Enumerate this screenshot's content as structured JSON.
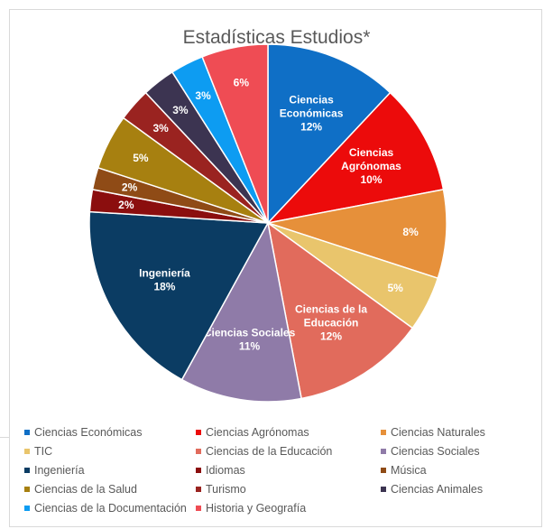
{
  "chart_data": {
    "type": "pie",
    "title": "Estadísticas  Estudios*",
    "slices": [
      {
        "name": "Ciencias Económicas",
        "value": 12,
        "label": [
          "Ciencias",
          "Económicas",
          "12%"
        ],
        "color": "#0f6fc6"
      },
      {
        "name": "Ciencias Agrónomas",
        "value": 10,
        "label": [
          "Ciencias",
          "Agrónomas",
          "10%"
        ],
        "color": "#ec0b0b"
      },
      {
        "name": "Ciencias Naturales",
        "value": 8,
        "label": [
          "8%"
        ],
        "color": "#e6903a"
      },
      {
        "name": "TIC",
        "value": 5,
        "label": [
          "5%"
        ],
        "color": "#e9c56c"
      },
      {
        "name": "Ciencias de la Educación",
        "value": 12,
        "label": [
          "Ciencias de la",
          "Educación",
          "12%"
        ],
        "color": "#e16b5c"
      },
      {
        "name": "Ciencias Sociales",
        "value": 11,
        "label": [
          "Ciencias Sociales",
          "11%"
        ],
        "color": "#8f7ba8"
      },
      {
        "name": "Ingeniería",
        "value": 18,
        "label": [
          "Ingeniería",
          "18%"
        ],
        "color": "#0b3c63"
      },
      {
        "name": "Idiomas",
        "value": 2,
        "label": [
          "2%"
        ],
        "color": "#8b0e0e"
      },
      {
        "name": "Música",
        "value": 2,
        "label": [
          "2%"
        ],
        "color": "#8f4b16"
      },
      {
        "name": "Ciencias de la Salud",
        "value": 5,
        "label": [
          "5%"
        ],
        "color": "#a78010"
      },
      {
        "name": "Turismo",
        "value": 3,
        "label": [
          "3%"
        ],
        "color": "#9a2320"
      },
      {
        "name": "Ciencias Animales",
        "value": 3,
        "label": [
          "3%"
        ],
        "color": "#3c3451"
      },
      {
        "name": "Ciencias de la Documentación",
        "value": 3,
        "label": [
          "3%"
        ],
        "color": "#0d9cf2"
      },
      {
        "name": "Historia y Geografía",
        "value": 6,
        "label": [
          "6%"
        ],
        "color": "#ef4c54"
      }
    ],
    "legend_position": "bottom"
  }
}
